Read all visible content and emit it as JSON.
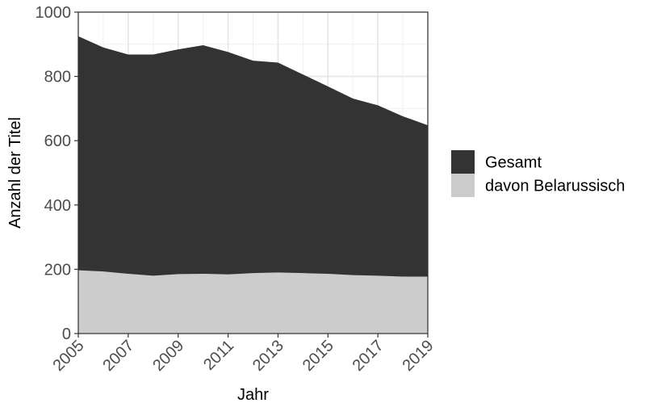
{
  "chart_data": {
    "type": "area",
    "stacked": false,
    "x": [
      2005,
      2006,
      2007,
      2008,
      2009,
      2010,
      2011,
      2012,
      2013,
      2014,
      2015,
      2016,
      2017,
      2018,
      2019
    ],
    "series": [
      {
        "name": "Gesamt",
        "color": "#333333",
        "values": [
          925,
          890,
          868,
          868,
          884,
          897,
          876,
          849,
          843,
          806,
          769,
          731,
          710,
          676,
          648
        ]
      },
      {
        "name": "davon Belarussisch",
        "color": "#cccccc",
        "values": [
          197,
          193,
          186,
          180,
          185,
          186,
          184,
          188,
          190,
          188,
          186,
          182,
          180,
          177,
          177
        ]
      }
    ],
    "xlabel": "Jahr",
    "ylabel": "Anzahl der Titel",
    "xlim": [
      2005,
      2019
    ],
    "ylim": [
      0,
      1000
    ],
    "x_ticks": [
      "2005",
      "2007",
      "2009",
      "2011",
      "2013",
      "2015",
      "2017",
      "2019"
    ],
    "y_ticks": [
      "0",
      "200",
      "400",
      "600",
      "800",
      "1000"
    ],
    "grid": true,
    "legend_position": "right"
  }
}
